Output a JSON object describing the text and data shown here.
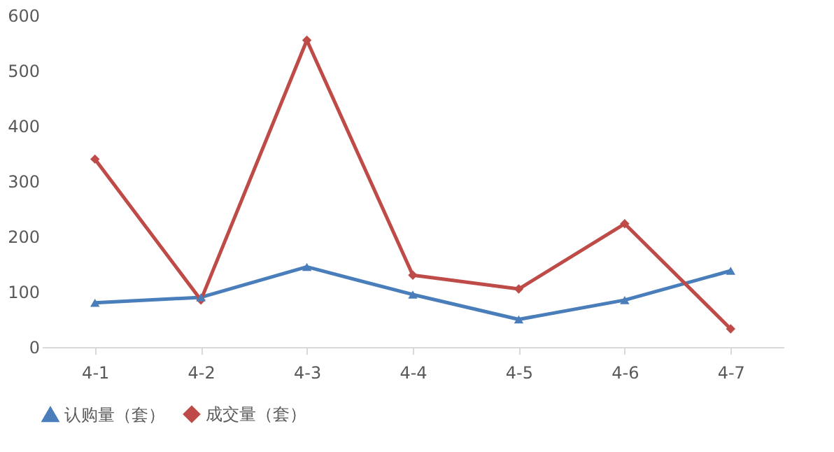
{
  "chart_data": {
    "type": "line",
    "categories": [
      "4-1",
      "4-2",
      "4-3",
      "4-4",
      "4-5",
      "4-6",
      "4-7"
    ],
    "series": [
      {
        "name": "认购量（套）",
        "color": "#4a7ebb",
        "marker": "triangle",
        "values": [
          80,
          90,
          145,
          95,
          50,
          85,
          138
        ]
      },
      {
        "name": "成交量（套）",
        "color": "#be4b48",
        "marker": "diamond",
        "values": [
          340,
          85,
          555,
          130,
          105,
          223,
          33
        ]
      }
    ],
    "ylim": [
      0,
      600
    ],
    "yticks": [
      0,
      100,
      200,
      300,
      400,
      500,
      600
    ],
    "grid": false,
    "legend": "bottom"
  }
}
